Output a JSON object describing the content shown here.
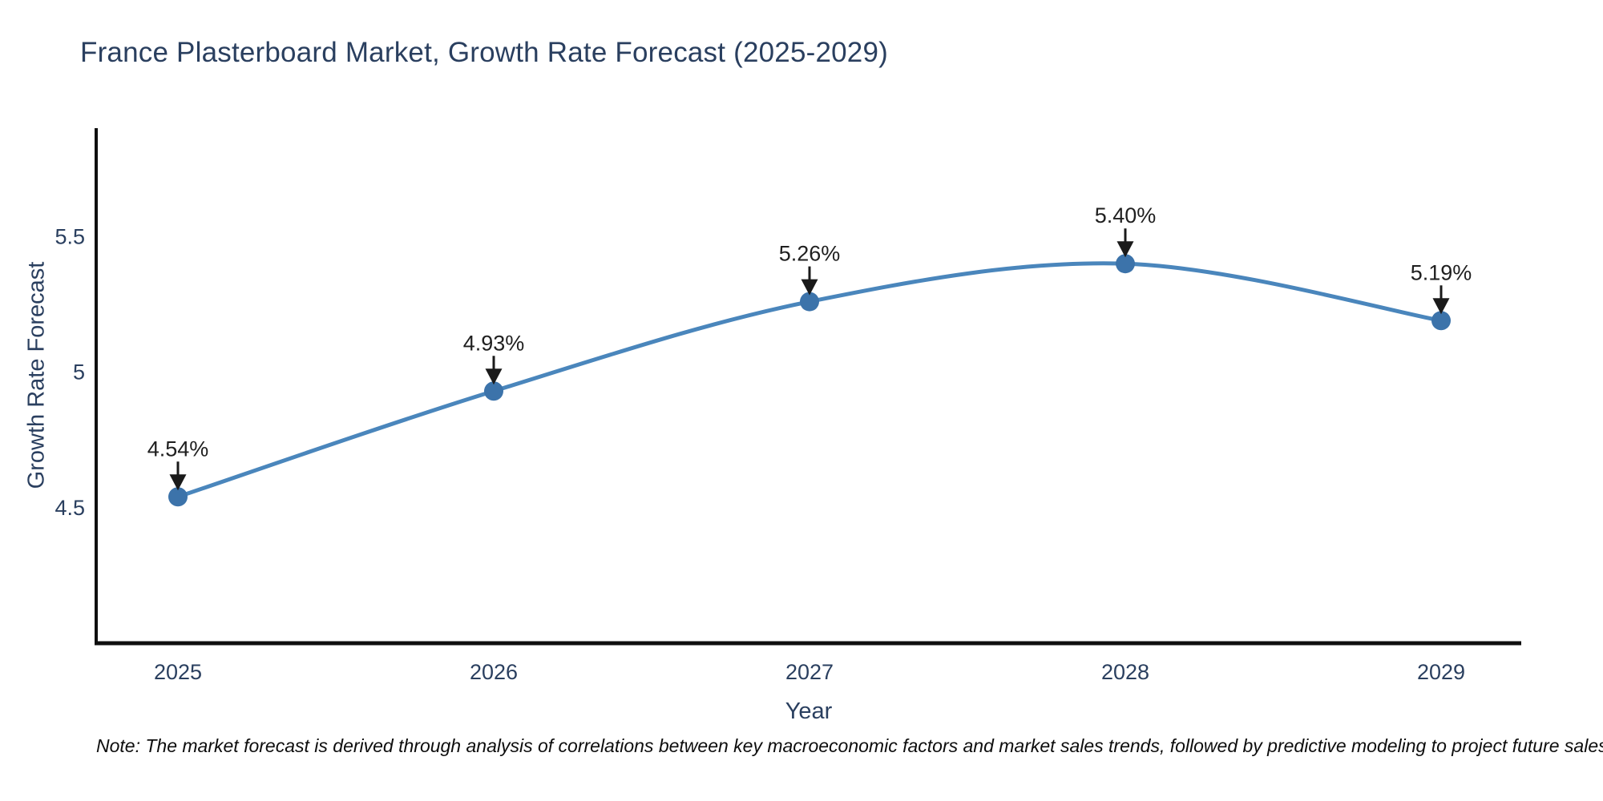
{
  "title": "France Plasterboard Market, Growth Rate Forecast (2025-2029)",
  "note": "Note: The market forecast is derived through analysis of correlations between key macroeconomic factors and market sales trends, followed by predictive modeling to project future sales",
  "chart_data": {
    "type": "line",
    "line_shape": "spline",
    "x": [
      2025,
      2026,
      2027,
      2028,
      2029
    ],
    "x_ticks": [
      "2025",
      "2026",
      "2027",
      "2028",
      "2029"
    ],
    "series": [
      {
        "name": "Growth Rate Forecast",
        "values": [
          4.54,
          4.93,
          5.26,
          5.4,
          5.19
        ]
      }
    ],
    "point_labels": [
      "4.54%",
      "4.93%",
      "5.26%",
      "5.40%",
      "5.19%"
    ],
    "xlabel": "Year",
    "ylabel": "Growth Rate Forecast",
    "y_ticks": [
      "4.5",
      "5",
      "5.5"
    ],
    "y_tick_values": [
      4.5,
      5.0,
      5.5
    ],
    "ylim": [
      4.0,
      5.9
    ],
    "grid": "off",
    "legend": "none",
    "colors": {
      "line": "#4a86bc",
      "marker": "#3c73aa",
      "axis": "#0f0f0f",
      "text": "#2a3f5f",
      "annotation": "#1a1a1a"
    }
  }
}
